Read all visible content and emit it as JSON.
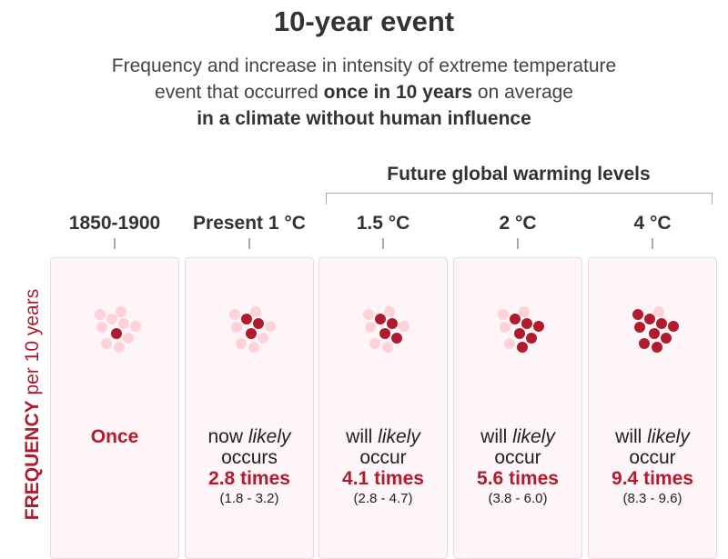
{
  "title": "10-year event",
  "subtitle": {
    "line1": "Frequency and increase in intensity of extreme temperature",
    "line2_pre": "event that occurred ",
    "line2_bold": "once in 10 years",
    "line2_post": " on average",
    "line3": "in a climate without human influence"
  },
  "future_label": "Future global warming levels",
  "y_label": {
    "bold": "FREQUENCY",
    "rest": " per 10 years"
  },
  "colors": {
    "accent": "#b01c2e",
    "dot_light": "#ffd2da",
    "panel_bg": "#fdf5f7"
  },
  "columns": [
    {
      "header": "1850-1900",
      "filled_dots": 1,
      "line1": "",
      "line2": "",
      "value": "Once",
      "range": ""
    },
    {
      "header": "Present 1 °C",
      "filled_dots": 3,
      "line1": "now likely",
      "line2": "occurs",
      "value": "2.8 times",
      "range": "(1.8 - 3.2)"
    },
    {
      "header": "1.5 °C",
      "filled_dots": 4,
      "line1": "will likely",
      "line2": "occur",
      "value": "4.1 times",
      "range": "(2.8 - 4.7)"
    },
    {
      "header": "2 °C",
      "filled_dots": 6,
      "line1": "will likely",
      "line2": "occur",
      "value": "5.6 times",
      "range": "(3.8 - 6.0)"
    },
    {
      "header": "4 °C",
      "filled_dots": 9,
      "line1": "will likely",
      "line2": "occur",
      "value": "9.4 times",
      "range": "(8.3 - 9.6)"
    }
  ]
}
